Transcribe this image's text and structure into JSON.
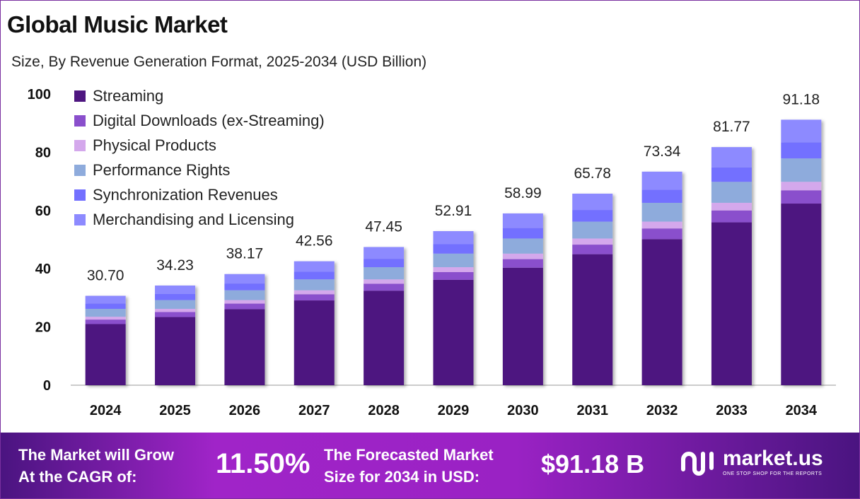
{
  "chart_data": {
    "type": "bar",
    "stacked": true,
    "title": "Global Music Market",
    "subtitle": "Size, By Revenue Generation Format, 2025-2034 (USD Billion)",
    "categories": [
      "2024",
      "2025",
      "2026",
      "2027",
      "2028",
      "2029",
      "2030",
      "2031",
      "2032",
      "2033",
      "2034"
    ],
    "totals": [
      "30.70",
      "34.23",
      "38.17",
      "42.56",
      "47.45",
      "52.91",
      "58.99",
      "65.78",
      "73.34",
      "81.77",
      "91.18"
    ],
    "series": [
      {
        "name": "Streaming",
        "color": "#4e1680",
        "values": [
          21.0,
          23.41,
          26.11,
          29.11,
          32.46,
          36.19,
          40.35,
          44.99,
          50.16,
          55.93,
          62.37
        ]
      },
      {
        "name": "Digital Downloads (ex-Streaming)",
        "color": "#8a4fcc",
        "values": [
          1.54,
          1.71,
          1.91,
          2.13,
          2.37,
          2.65,
          2.95,
          3.29,
          3.67,
          4.09,
          4.56
        ]
      },
      {
        "name": "Physical Products",
        "color": "#d4a8ec",
        "values": [
          0.98,
          1.1,
          1.22,
          1.36,
          1.52,
          1.69,
          1.89,
          2.1,
          2.35,
          2.62,
          2.92
        ]
      },
      {
        "name": "Performance Rights",
        "color": "#8eabdc",
        "values": [
          2.7,
          3.01,
          3.36,
          3.75,
          4.18,
          4.66,
          5.19,
          5.79,
          6.45,
          7.2,
          8.02
        ]
      },
      {
        "name": "Synchronization Revenues",
        "color": "#7370ff",
        "values": [
          1.87,
          2.09,
          2.33,
          2.6,
          2.89,
          3.23,
          3.6,
          4.01,
          4.47,
          4.99,
          5.56
        ]
      },
      {
        "name": "Merchandising and Licensing",
        "color": "#8d8aff",
        "values": [
          2.61,
          2.91,
          3.24,
          3.61,
          4.03,
          4.49,
          5.01,
          5.6,
          6.24,
          6.94,
          7.75
        ]
      }
    ],
    "ylim": [
      0,
      100
    ],
    "yticks": [
      "0",
      "20",
      "40",
      "60",
      "80",
      "100"
    ],
    "grid": false,
    "legend": "top-left"
  },
  "footer": {
    "cagr_label_1": "The Market will Grow",
    "cagr_label_2": "At the CAGR of:",
    "cagr_value": "11.50%",
    "forecast_label_1": "The Forecasted Market",
    "forecast_label_2": "Size for 2034 in USD:",
    "forecast_value": "$91.18 B",
    "brand": "market.us",
    "brand_tagline": "ONE STOP SHOP FOR THE REPORTS"
  }
}
